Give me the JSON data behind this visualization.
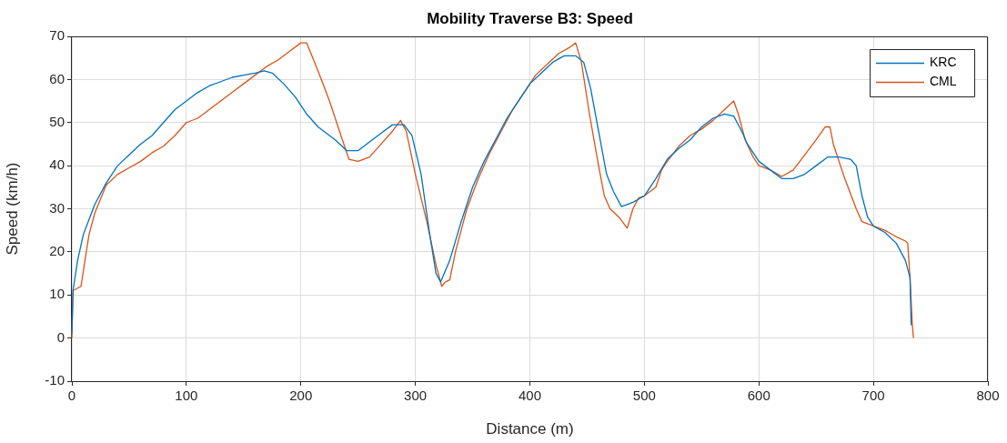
{
  "chart_data": {
    "type": "line",
    "title": "Mobility Traverse B3: Speed",
    "xlabel": "Distance (m)",
    "ylabel": "Speed (km/h)",
    "xlim": [
      0,
      800
    ],
    "xticks": [
      0,
      100,
      200,
      300,
      400,
      500,
      600,
      700,
      800
    ],
    "ylim": [
      -10,
      70
    ],
    "yticks": [
      -10,
      0,
      10,
      20,
      30,
      40,
      50,
      60,
      70
    ],
    "grid": true,
    "legend": "top right",
    "marker": "none",
    "line_style": "solid",
    "series": [
      {
        "name": "KRC",
        "color": "#0072bd",
        "x": [
          0,
          1,
          5,
          10,
          20,
          30,
          40,
          50,
          60,
          70,
          80,
          90,
          100,
          110,
          120,
          130,
          140,
          150,
          160,
          168,
          175,
          185,
          195,
          205,
          215,
          230,
          240,
          250,
          260,
          270,
          280,
          290,
          297,
          305,
          312,
          318,
          322,
          330,
          340,
          350,
          360,
          370,
          380,
          390,
          400,
          410,
          420,
          430,
          440,
          447,
          453,
          460,
          467,
          473,
          480,
          490,
          500,
          510,
          520,
          530,
          540,
          550,
          560,
          570,
          578,
          585,
          590,
          600,
          610,
          620,
          630,
          640,
          650,
          660,
          670,
          680,
          685,
          690,
          695,
          700,
          710,
          720,
          728,
          732,
          733
        ],
        "values": [
          1,
          11,
          18,
          24,
          31,
          36,
          40,
          42.5,
          45,
          47,
          50,
          53,
          55,
          57,
          58.5,
          59.5,
          60.5,
          61,
          61.5,
          62,
          61.5,
          59,
          56,
          52,
          49,
          46,
          43.5,
          43.5,
          45.5,
          47.5,
          49.5,
          49.5,
          47,
          38,
          25,
          15,
          13,
          18,
          27,
          35,
          41,
          46,
          51,
          55,
          59,
          61.5,
          64,
          65.5,
          65.5,
          64,
          58,
          48,
          38,
          34,
          30.5,
          31.5,
          33,
          37,
          41.5,
          44,
          46,
          49,
          51,
          52,
          51.5,
          48,
          45,
          41,
          39,
          37,
          37,
          38,
          40,
          42,
          42,
          41.5,
          40,
          33,
          28,
          26,
          24.5,
          22,
          18,
          14,
          3
        ]
      },
      {
        "name": "CML",
        "color": "#d95319",
        "x": [
          0,
          1,
          8,
          12,
          15,
          20,
          30,
          40,
          50,
          60,
          70,
          80,
          90,
          100,
          110,
          120,
          130,
          140,
          150,
          160,
          170,
          180,
          190,
          200,
          205,
          215,
          225,
          235,
          242,
          250,
          260,
          270,
          280,
          287,
          292,
          300,
          310,
          318,
          323,
          326,
          330,
          335,
          345,
          355,
          365,
          375,
          385,
          395,
          405,
          415,
          425,
          435,
          440,
          445,
          452,
          460,
          465,
          470,
          478,
          485,
          490,
          495,
          500,
          510,
          515,
          520,
          530,
          540,
          550,
          560,
          570,
          578,
          582,
          588,
          595,
          600,
          610,
          620,
          630,
          640,
          650,
          658,
          662,
          665,
          675,
          685,
          690,
          700,
          710,
          720,
          728,
          730,
          732,
          734,
          735
        ],
        "values": [
          0,
          11,
          12,
          19,
          24,
          29,
          35.5,
          38,
          39.5,
          41,
          43,
          44.5,
          47,
          50,
          51,
          53,
          55,
          57,
          59,
          61,
          63,
          64.5,
          66.5,
          68.5,
          68.5,
          62,
          55,
          47,
          41.5,
          41,
          42,
          45,
          48,
          50.5,
          48,
          38,
          27,
          17,
          12,
          13,
          13.5,
          20,
          30,
          37,
          43,
          48,
          53,
          57,
          61,
          63.5,
          66,
          67.5,
          68.5,
          64,
          52,
          40,
          33,
          30,
          28,
          25.5,
          30,
          32.5,
          33,
          35,
          39,
          41,
          44.5,
          47,
          48.5,
          50.5,
          53,
          55,
          52,
          46,
          42,
          40,
          39,
          37.5,
          39,
          42.5,
          46,
          49,
          49,
          45,
          37,
          30,
          27,
          26,
          25,
          23.5,
          22.5,
          22,
          14,
          3,
          0
        ]
      }
    ]
  }
}
